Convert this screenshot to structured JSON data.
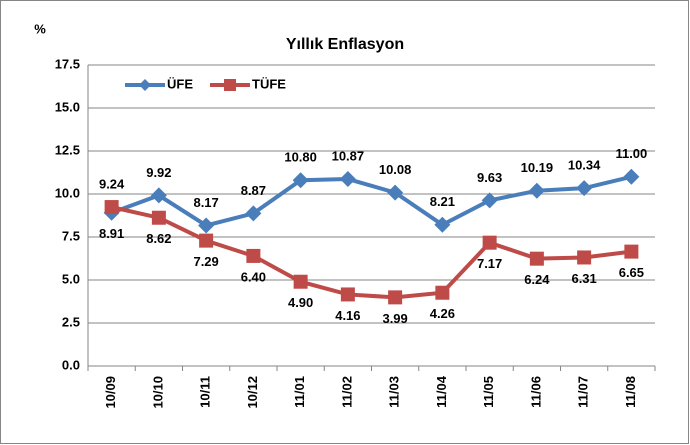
{
  "chart_data": {
    "type": "line",
    "title": "Yıllık Enflasyon",
    "y_label": "%",
    "categories": [
      "10/09",
      "10/10",
      "10/11",
      "10/12",
      "11/01",
      "11/02",
      "11/03",
      "11/04",
      "11/05",
      "11/06",
      "11/07",
      "11/08"
    ],
    "series": [
      {
        "name": "ÜFE",
        "color": "#4a7ebb",
        "values": [
          8.91,
          9.92,
          8.17,
          8.87,
          10.8,
          10.87,
          10.08,
          8.21,
          9.63,
          10.19,
          10.34,
          11.0
        ],
        "value_labels": [
          "8.91",
          "9.92",
          "8.17",
          "8.87",
          "10.80",
          "10.87",
          "10.08",
          "8.21",
          "9.63",
          "10.19",
          "10.34",
          "11.00"
        ]
      },
      {
        "name": "TÜFE",
        "color": "#be4b48",
        "values": [
          9.24,
          8.62,
          7.29,
          6.4,
          4.9,
          4.16,
          3.99,
          4.26,
          7.17,
          6.24,
          6.31,
          6.65
        ],
        "value_labels": [
          "9.24",
          "8.62",
          "7.29",
          "6.40",
          "4.90",
          "4.16",
          "3.99",
          "4.26",
          "7.17",
          "6.24",
          "6.31",
          "6.65"
        ]
      }
    ],
    "ylim": [
      0,
      17.5
    ],
    "yticks": [
      {
        "value": 0,
        "label": "0.0"
      },
      2.5,
      {
        "value": 5,
        "label": "5.0"
      },
      7.5,
      {
        "value": 10,
        "label": "10.0"
      },
      12.5,
      {
        "value": 15,
        "label": "15.0"
      },
      17.5
    ],
    "grid": true,
    "legend": "top-left"
  }
}
